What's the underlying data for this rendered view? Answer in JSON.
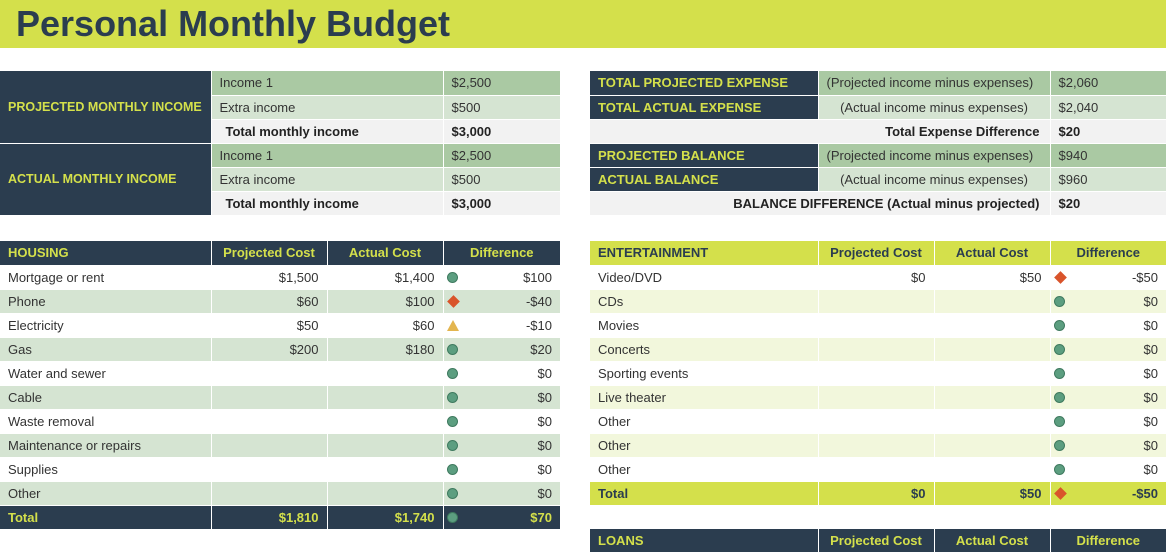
{
  "title": "Personal Monthly Budget",
  "income": {
    "projected": {
      "label": "PROJECTED MONTHLY INCOME",
      "rows": [
        {
          "label": "Income 1",
          "value": "$2,500"
        },
        {
          "label": "Extra income",
          "value": "$500"
        },
        {
          "label": "Total monthly income",
          "value": "$3,000"
        }
      ]
    },
    "actual": {
      "label": "ACTUAL MONTHLY INCOME",
      "rows": [
        {
          "label": "Income 1",
          "value": "$2,500"
        },
        {
          "label": "Extra income",
          "value": "$500"
        },
        {
          "label": "Total monthly income",
          "value": "$3,000"
        }
      ]
    }
  },
  "summary": {
    "total_projected_expense": {
      "label": "TOTAL PROJECTED EXPENSE",
      "note": "(Projected income minus expenses)",
      "value": "$2,060"
    },
    "total_actual_expense": {
      "label": "TOTAL ACTUAL EXPENSE",
      "note": "(Actual income minus expenses)",
      "value": "$2,040"
    },
    "total_expense_difference": {
      "label": "Total Expense Difference",
      "value": "$20"
    },
    "projected_balance": {
      "label": "PROJECTED BALANCE",
      "note": "(Projected income minus expenses)",
      "value": "$940"
    },
    "actual_balance": {
      "label": "ACTUAL BALANCE",
      "note": "(Actual income minus expenses)",
      "value": "$960"
    },
    "balance_difference": {
      "label": "BALANCE DIFFERENCE (Actual minus projected)",
      "value": "$20"
    }
  },
  "housing": {
    "headers": [
      "HOUSING",
      "Projected Cost",
      "Actual Cost",
      "Difference"
    ],
    "rows": [
      {
        "item": "Mortgage or rent",
        "projected": "$1,500",
        "actual": "$1,400",
        "status": "good",
        "diff": "$100"
      },
      {
        "item": "Phone",
        "projected": "$60",
        "actual": "$100",
        "status": "bad",
        "diff": "-$40"
      },
      {
        "item": "Electricity",
        "projected": "$50",
        "actual": "$60",
        "status": "warn",
        "diff": "-$10"
      },
      {
        "item": "Gas",
        "projected": "$200",
        "actual": "$180",
        "status": "good",
        "diff": "$20"
      },
      {
        "item": "Water and sewer",
        "projected": "",
        "actual": "",
        "status": "good",
        "diff": "$0"
      },
      {
        "item": "Cable",
        "projected": "",
        "actual": "",
        "status": "good",
        "diff": "$0"
      },
      {
        "item": "Waste removal",
        "projected": "",
        "actual": "",
        "status": "good",
        "diff": "$0"
      },
      {
        "item": "Maintenance or repairs",
        "projected": "",
        "actual": "",
        "status": "good",
        "diff": "$0"
      },
      {
        "item": "Supplies",
        "projected": "",
        "actual": "",
        "status": "good",
        "diff": "$0"
      },
      {
        "item": "Other",
        "projected": "",
        "actual": "",
        "status": "good",
        "diff": "$0"
      }
    ],
    "total": {
      "label": "Total",
      "projected": "$1,810",
      "actual": "$1,740",
      "status": "good",
      "diff": "$70"
    }
  },
  "entertainment": {
    "headers": [
      "ENTERTAINMENT",
      "Projected Cost",
      "Actual Cost",
      "Difference"
    ],
    "rows": [
      {
        "item": "Video/DVD",
        "projected": "$0",
        "actual": "$50",
        "status": "bad",
        "diff": "-$50"
      },
      {
        "item": "CDs",
        "projected": "",
        "actual": "",
        "status": "good",
        "diff": "$0"
      },
      {
        "item": "Movies",
        "projected": "",
        "actual": "",
        "status": "good",
        "diff": "$0"
      },
      {
        "item": "Concerts",
        "projected": "",
        "actual": "",
        "status": "good",
        "diff": "$0"
      },
      {
        "item": "Sporting events",
        "projected": "",
        "actual": "",
        "status": "good",
        "diff": "$0"
      },
      {
        "item": "Live theater",
        "projected": "",
        "actual": "",
        "status": "good",
        "diff": "$0"
      },
      {
        "item": "Other",
        "projected": "",
        "actual": "",
        "status": "good",
        "diff": "$0"
      },
      {
        "item": "Other",
        "projected": "",
        "actual": "",
        "status": "good",
        "diff": "$0"
      },
      {
        "item": "Other",
        "projected": "",
        "actual": "",
        "status": "good",
        "diff": "$0"
      }
    ],
    "total": {
      "label": "Total",
      "projected": "$0",
      "actual": "$50",
      "status": "bad",
      "diff": "-$50"
    }
  },
  "loans": {
    "headers": [
      "LOANS",
      "Projected Cost",
      "Actual Cost",
      "Difference"
    ]
  },
  "colors": {
    "navy": "#2b3d4f",
    "lime": "#d4e04b",
    "green_dark": "#aac9a3",
    "green_light": "#d5e4d2",
    "good": "#5c9e80",
    "bad": "#d9542b",
    "warn": "#e3b54f"
  }
}
